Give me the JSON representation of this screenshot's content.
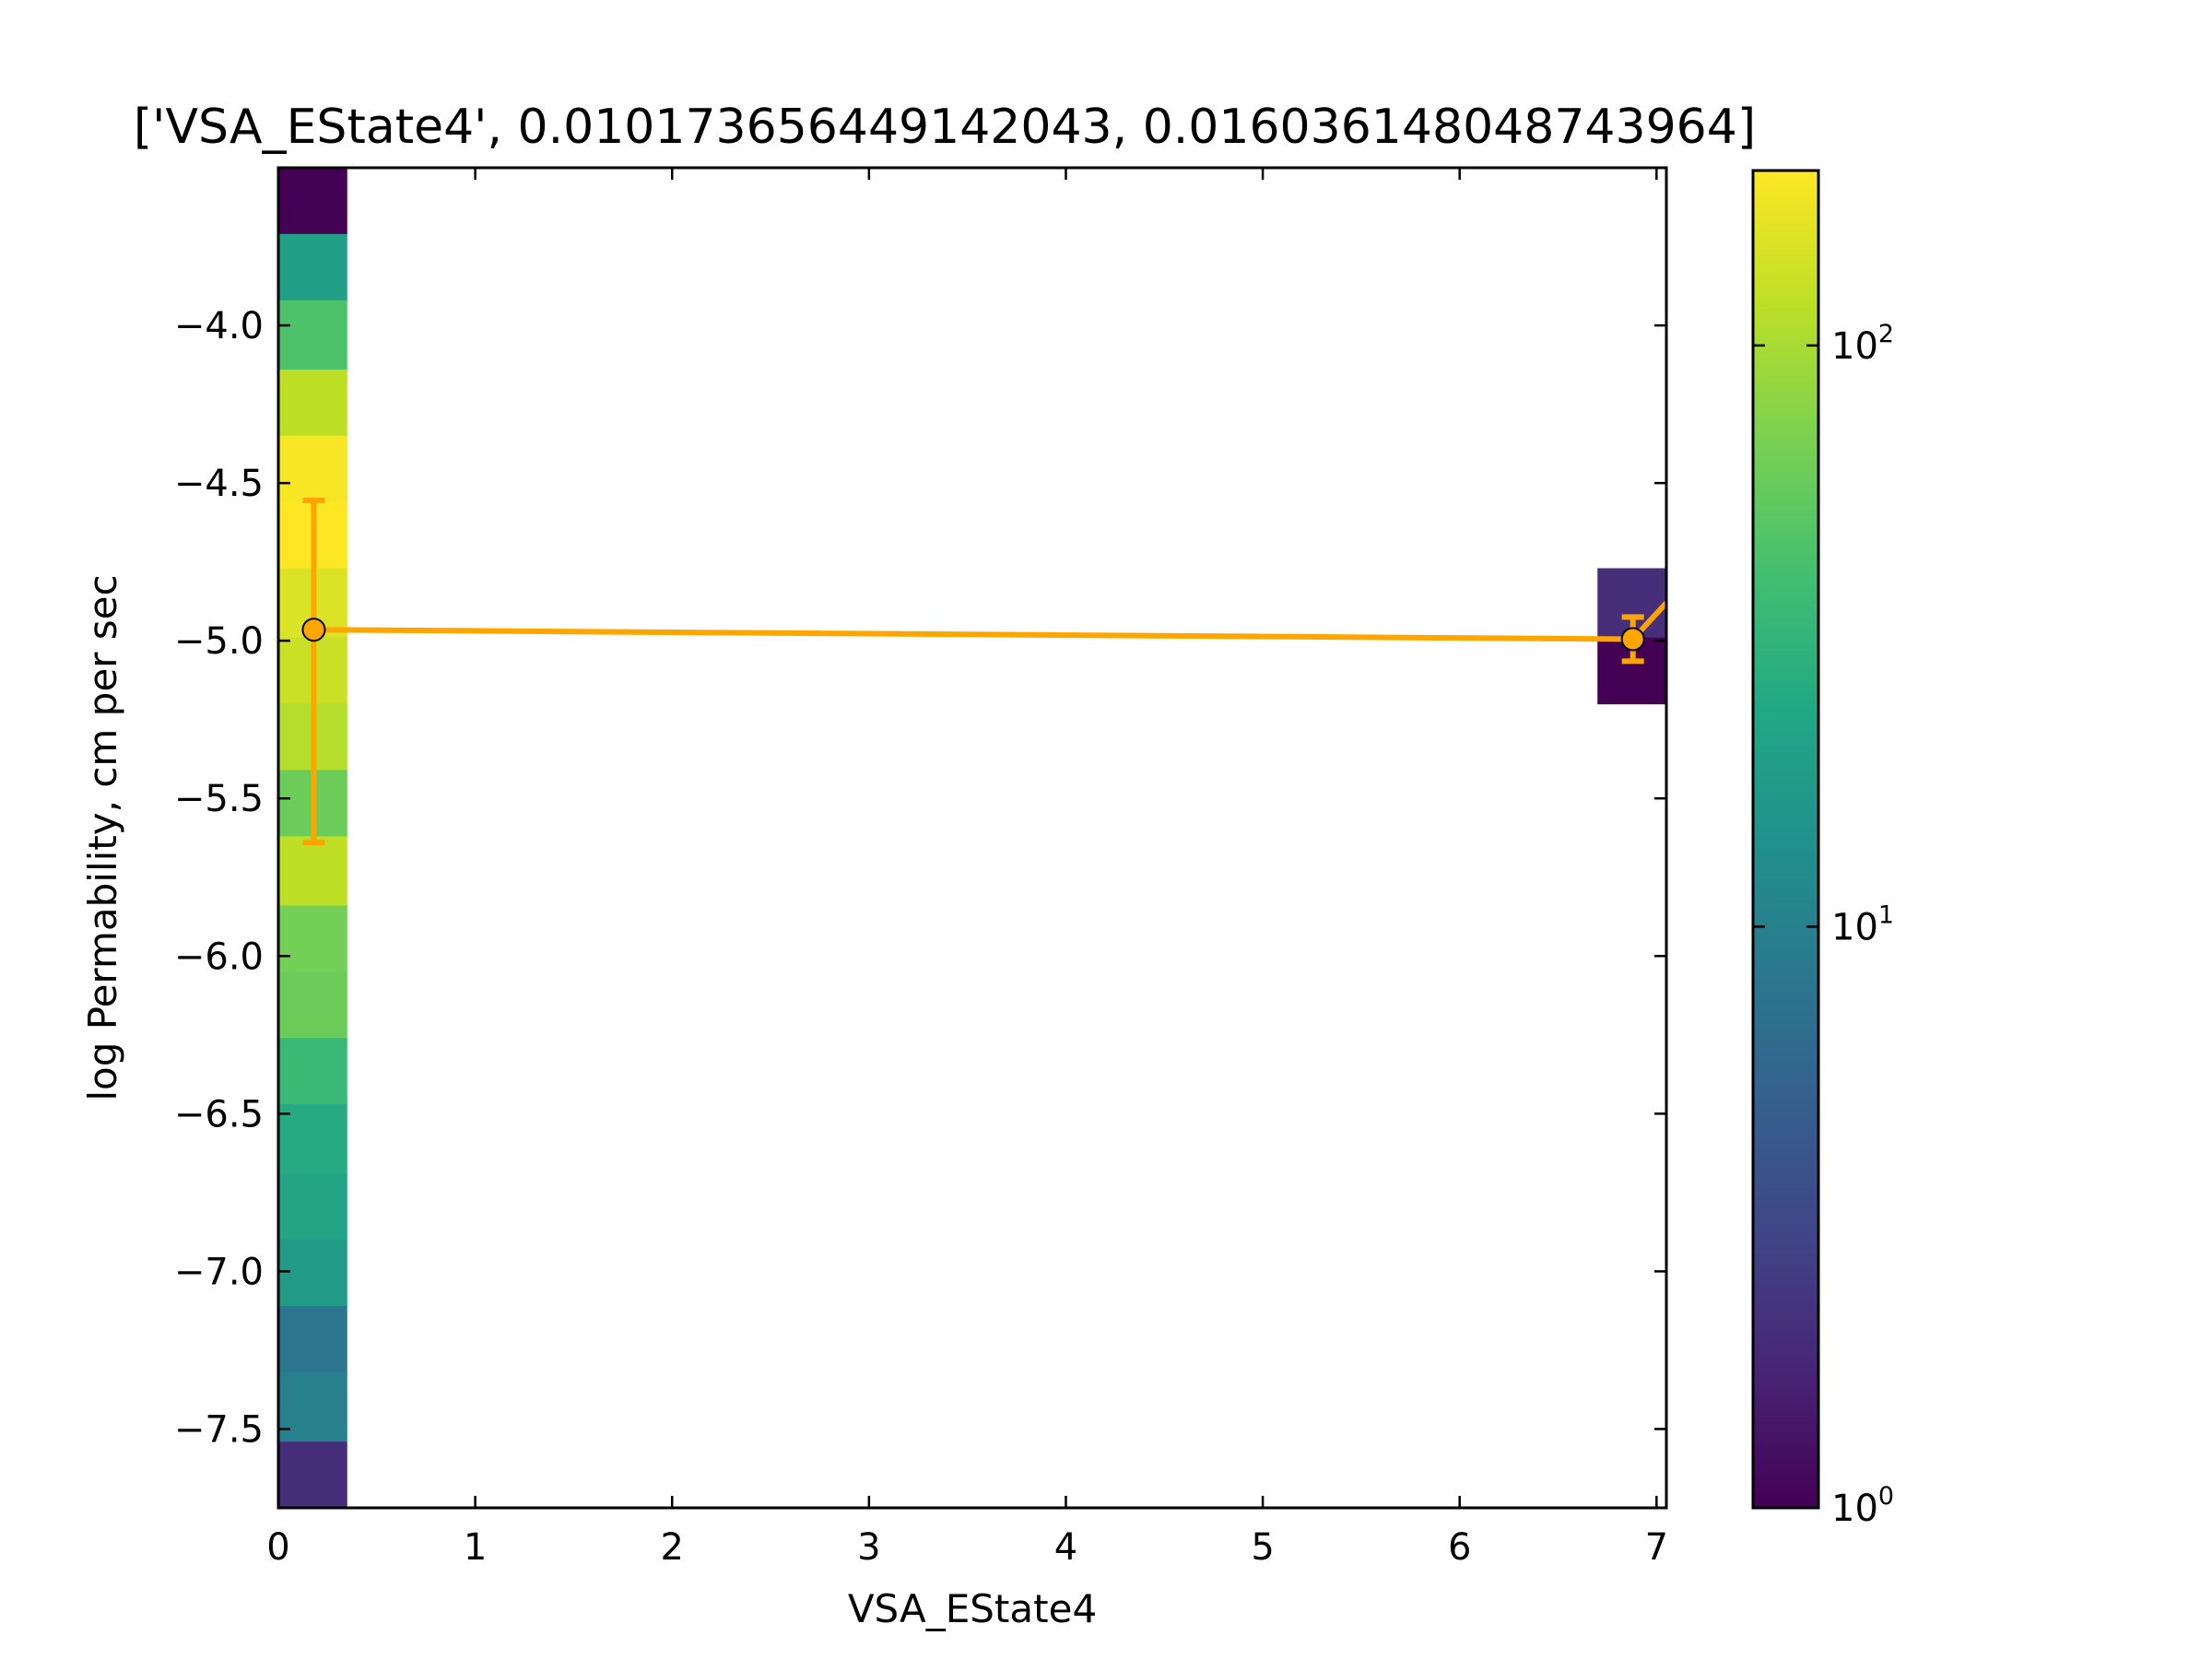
{
  "chart_data": {
    "type": "heatmap",
    "title": "['VSA_EState4', 0.010173656449142043, 0.016036148048743964]",
    "xlabel": "VSA_EState4",
    "ylabel": "log Permability, cm per sec",
    "xlim": [
      0,
      7.05
    ],
    "ylim": [
      -7.75,
      -3.5
    ],
    "x_ticks": [
      "0",
      "1",
      "2",
      "3",
      "4",
      "5",
      "6",
      "7"
    ],
    "y_ticks": [
      "−4.0",
      "−4.5",
      "−5.0",
      "−5.5",
      "−6.0",
      "−6.5",
      "−7.0",
      "−7.5"
    ],
    "colormap": "viridis",
    "color_scale": "log",
    "colorbar": {
      "range": [
        1,
        200
      ],
      "ticks": [
        {
          "base": "10",
          "exp": "0"
        },
        {
          "base": "10",
          "exp": "1"
        },
        {
          "base": "10",
          "exp": "2"
        }
      ]
    },
    "cells": [
      {
        "x0": 0,
        "x1": 0.35,
        "y0": -3.71,
        "y1": -3.5,
        "count": 1
      },
      {
        "x0": 0,
        "x1": 0.35,
        "y0": -3.92,
        "y1": -3.71,
        "count": 20
      },
      {
        "x0": 0,
        "x1": 0.35,
        "y0": -4.14,
        "y1": -3.92,
        "count": 45
      },
      {
        "x0": 0,
        "x1": 0.35,
        "y0": -4.35,
        "y1": -4.14,
        "count": 120
      },
      {
        "x0": 0,
        "x1": 0.35,
        "y0": -4.56,
        "y1": -4.35,
        "count": 190
      },
      {
        "x0": 0,
        "x1": 0.35,
        "y0": -4.77,
        "y1": -4.56,
        "count": 200
      },
      {
        "x0": 0,
        "x1": 0.35,
        "y0": -4.99,
        "y1": -4.77,
        "count": 150
      },
      {
        "x0": 0,
        "x1": 0.35,
        "y0": -5.2,
        "y1": -4.99,
        "count": 130
      },
      {
        "x0": 0,
        "x1": 0.35,
        "y0": -5.41,
        "y1": -5.2,
        "count": 110
      },
      {
        "x0": 0,
        "x1": 0.35,
        "y0": -5.62,
        "y1": -5.41,
        "count": 60
      },
      {
        "x0": 0,
        "x1": 0.35,
        "y0": -5.84,
        "y1": -5.62,
        "count": 120
      },
      {
        "x0": 0,
        "x1": 0.35,
        "y0": -6.05,
        "y1": -5.84,
        "count": 65
      },
      {
        "x0": 0,
        "x1": 0.35,
        "y0": -6.26,
        "y1": -6.05,
        "count": 60
      },
      {
        "x0": 0,
        "x1": 0.35,
        "y0": -6.47,
        "y1": -6.26,
        "count": 35
      },
      {
        "x0": 0,
        "x1": 0.35,
        "y0": -6.69,
        "y1": -6.47,
        "count": 25
      },
      {
        "x0": 0,
        "x1": 0.35,
        "y0": -6.9,
        "y1": -6.69,
        "count": 22
      },
      {
        "x0": 0,
        "x1": 0.35,
        "y0": -7.11,
        "y1": -6.9,
        "count": 18
      },
      {
        "x0": 0,
        "x1": 0.35,
        "y0": -7.32,
        "y1": -7.11,
        "count": 8
      },
      {
        "x0": 0,
        "x1": 0.35,
        "y0": -7.54,
        "y1": -7.32,
        "count": 10
      },
      {
        "x0": 0,
        "x1": 0.35,
        "y0": -7.75,
        "y1": -7.54,
        "count": 2
      },
      {
        "x0": 6.7,
        "x1": 7.05,
        "y0": -4.99,
        "y1": -4.77,
        "count": 2
      },
      {
        "x0": 6.7,
        "x1": 7.05,
        "y0": -5.2,
        "y1": -4.99,
        "count": 1
      }
    ],
    "overlay": {
      "color": "#ffa500",
      "points": [
        {
          "x": 0.18,
          "y": -4.965,
          "yerr_low": -5.64,
          "yerr_high": -4.555
        },
        {
          "x": 6.88,
          "y": -4.995,
          "yerr_low": -5.065,
          "yerr_high": -4.925
        }
      ],
      "line_tail": {
        "x": 7.05,
        "y": -4.88
      }
    }
  }
}
